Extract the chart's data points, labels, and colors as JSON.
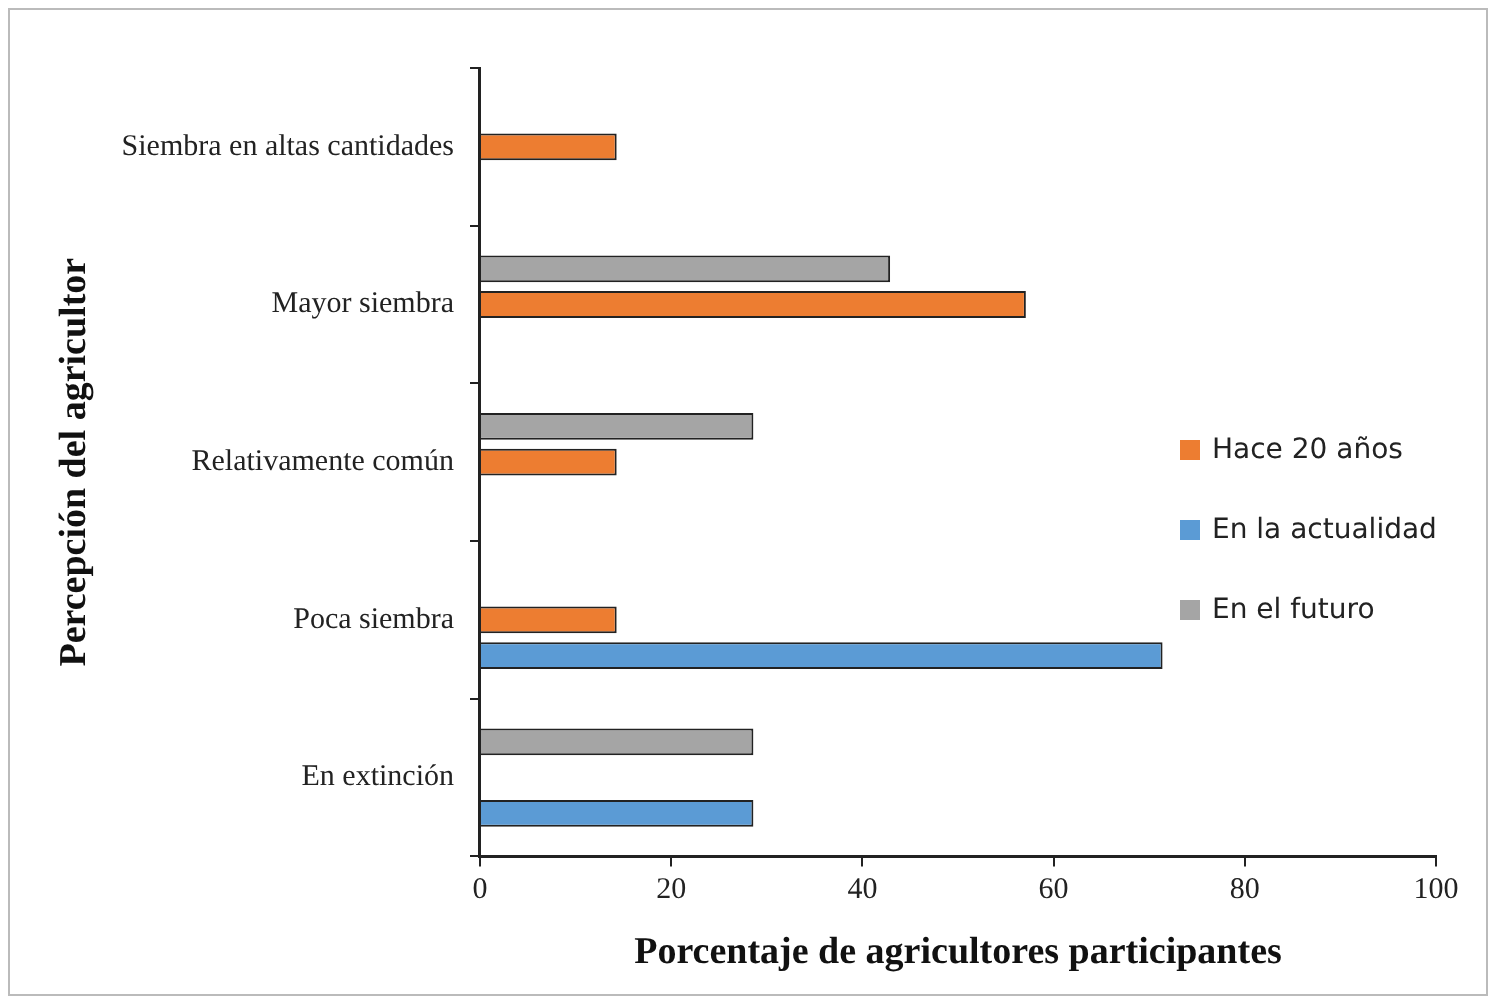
{
  "chart_data": {
    "type": "bar",
    "orientation": "horizontal",
    "xlabel": "Porcentaje de agricultores participantes",
    "ylabel": "Percepción del agricultor",
    "categories": [
      "Siembra en altas cantidades",
      "Mayor siembra",
      "Relativamente común",
      "Poca siembra",
      "En extinción"
    ],
    "series": [
      {
        "name": "Hace 20 años",
        "color": "#ed7d31",
        "values": [
          14.3,
          57.1,
          14.3,
          14.3,
          null
        ]
      },
      {
        "name": "En la actualidad",
        "color": "#5b9bd5",
        "values": [
          null,
          null,
          null,
          71.4,
          28.6
        ]
      },
      {
        "name": "En el futuro",
        "color": "#a5a5a5",
        "values": [
          null,
          42.9,
          28.6,
          null,
          28.6
        ]
      }
    ],
    "xlim": [
      0,
      100
    ],
    "xticks": [
      0,
      20,
      40,
      60,
      80,
      100
    ],
    "grid": false,
    "legend": "right"
  }
}
